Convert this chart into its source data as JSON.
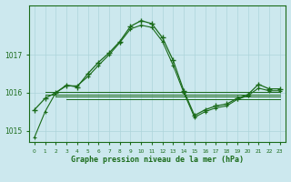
{
  "title": "Graphe pression niveau de la mer (hPa)",
  "bg_color": "#cce8ee",
  "grid_color": "#add4da",
  "line_color": "#1a6b1a",
  "xlabel_color": "#1a6b1a",
  "xlim": [
    -0.5,
    23.5
  ],
  "ylim": [
    1014.7,
    1018.3
  ],
  "yticks": [
    1015,
    1016,
    1017
  ],
  "xticks": [
    0,
    1,
    2,
    3,
    4,
    5,
    6,
    7,
    8,
    9,
    10,
    11,
    12,
    13,
    14,
    15,
    16,
    17,
    18,
    19,
    20,
    21,
    22,
    23
  ],
  "main_series": {
    "x": [
      0,
      1,
      2,
      3,
      4,
      5,
      6,
      7,
      8,
      9,
      10,
      11,
      12,
      13,
      14,
      15,
      16,
      17,
      18,
      19,
      20,
      21,
      22,
      23
    ],
    "y": [
      1015.55,
      1015.85,
      1016.0,
      1016.2,
      1016.15,
      1016.5,
      1016.8,
      1017.05,
      1017.35,
      1017.75,
      1017.9,
      1017.82,
      1017.45,
      1016.85,
      1016.05,
      1015.4,
      1015.55,
      1015.65,
      1015.7,
      1015.85,
      1015.95,
      1016.22,
      1016.1,
      1016.1
    ]
  },
  "second_series": {
    "x": [
      0,
      1,
      2,
      3,
      4,
      5,
      6,
      7,
      8,
      9,
      10,
      11,
      12,
      13,
      14,
      15,
      16,
      17,
      18,
      19,
      20,
      21,
      22,
      23
    ],
    "y": [
      1014.82,
      1015.5,
      1016.0,
      1016.18,
      1016.18,
      1016.42,
      1016.72,
      1017.0,
      1017.32,
      1017.68,
      1017.78,
      1017.72,
      1017.35,
      1016.72,
      1016.0,
      1015.35,
      1015.5,
      1015.6,
      1015.65,
      1015.82,
      1015.92,
      1016.12,
      1016.05,
      1016.05
    ]
  },
  "flat_lines": [
    {
      "x": [
        1,
        23
      ],
      "y": [
        1016.02,
        1016.02
      ]
    },
    {
      "x": [
        1,
        23
      ],
      "y": [
        1015.96,
        1015.96
      ]
    },
    {
      "x": [
        2,
        23
      ],
      "y": [
        1015.9,
        1015.9
      ]
    },
    {
      "x": [
        3,
        23
      ],
      "y": [
        1015.83,
        1015.83
      ]
    }
  ]
}
